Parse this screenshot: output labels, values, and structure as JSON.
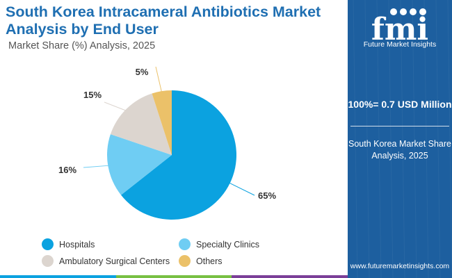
{
  "header": {
    "title": "South Korea Intracameral Antibiotics Market Analysis by End User",
    "subtitle": "Market Share (%) Analysis, 2025"
  },
  "chart_data": {
    "type": "pie",
    "title": "South Korea Intracameral Antibiotics Market Analysis by End User",
    "subtitle": "Market Share (%) Analysis, 2025",
    "categories": [
      "Hospitals",
      "Specialty Clinics",
      "Ambulatory Surgical Centers",
      "Others"
    ],
    "values": [
      65,
      16,
      15,
      5
    ],
    "data_labels": [
      "65%",
      "16%",
      "15%",
      "5%"
    ],
    "colors": [
      "#0ba2e0",
      "#6fcdf3",
      "#dcd5cf",
      "#ebc169"
    ],
    "legend_placement": "bottom",
    "start_angle_deg": 0,
    "direction": "clockwise"
  },
  "side_panel": {
    "brand_letters": "fmi",
    "brand_tagline": "Future Market Insights",
    "total_label": "100%= 0.7 USD Million",
    "description": "South Korea Market Share Analysis, 2025",
    "website": "www.futuremarketinsights.com",
    "background_color": "#1d5f9f"
  },
  "bottom_bar_colors": [
    "#0ba2e0",
    "#78c043",
    "#7b3f98"
  ]
}
